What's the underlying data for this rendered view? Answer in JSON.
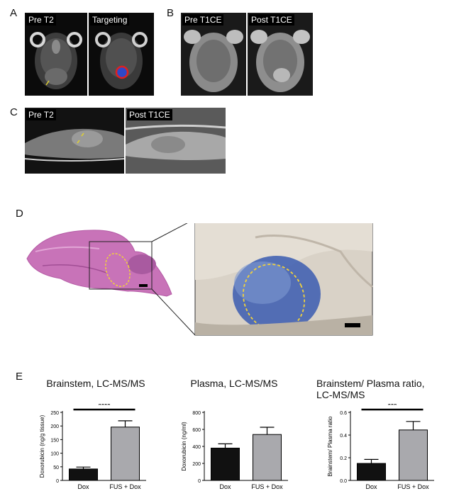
{
  "panels": {
    "A": {
      "letter": "A",
      "images": [
        {
          "label": "Pre T2"
        },
        {
          "label": "Targeting"
        }
      ]
    },
    "B": {
      "letter": "B",
      "images": [
        {
          "label": "Pre T1CE"
        },
        {
          "label": "Post T1CE"
        }
      ]
    },
    "C": {
      "letter": "C",
      "images": [
        {
          "label": "Pre T2"
        },
        {
          "label": "Post T1CE"
        }
      ]
    },
    "D": {
      "letter": "D"
    },
    "E": {
      "letter": "E"
    }
  },
  "chart_data": [
    {
      "type": "bar",
      "title": "Brainstem, LC-MS/MS",
      "ylabel": "Doxorubicin (ng/g tissue)",
      "categories": [
        "Dox",
        "FUS + Dox"
      ],
      "values": [
        42,
        196
      ],
      "errors": [
        7,
        23
      ],
      "colors": [
        "#111111",
        "#a9a9ad"
      ],
      "ylim": [
        0,
        250
      ],
      "yticks": [
        0,
        50,
        100,
        150,
        200,
        250
      ],
      "significance": "****"
    },
    {
      "type": "bar",
      "title": "Plasma, LC-MS/MS",
      "ylabel": "Doxorubicin (ng/ml)",
      "categories": [
        "Dox",
        "FUS + Dox"
      ],
      "values": [
        380,
        540
      ],
      "errors": [
        50,
        85
      ],
      "colors": [
        "#111111",
        "#a9a9ad"
      ],
      "ylim": [
        0,
        800
      ],
      "yticks": [
        0,
        200,
        400,
        600,
        800
      ],
      "significance": ""
    },
    {
      "type": "bar",
      "title": "Brainstem/ Plasma ratio, LC-MS/MS",
      "title_lines": [
        "Brainstem/ Plasma ratio,",
        "LC-MS/MS"
      ],
      "ylabel": "Brainstem/ Plasma ratio",
      "categories": [
        "Dox",
        "FUS + Dox"
      ],
      "values": [
        0.15,
        0.445
      ],
      "errors": [
        0.035,
        0.075
      ],
      "colors": [
        "#111111",
        "#a9a9ad"
      ],
      "ylim": [
        0,
        0.6
      ],
      "yticks": [
        0.0,
        0.2,
        0.4,
        0.6
      ],
      "ytick_labels": [
        "0.0",
        "0.2",
        "0.4",
        "0.6"
      ],
      "significance": "***"
    }
  ]
}
